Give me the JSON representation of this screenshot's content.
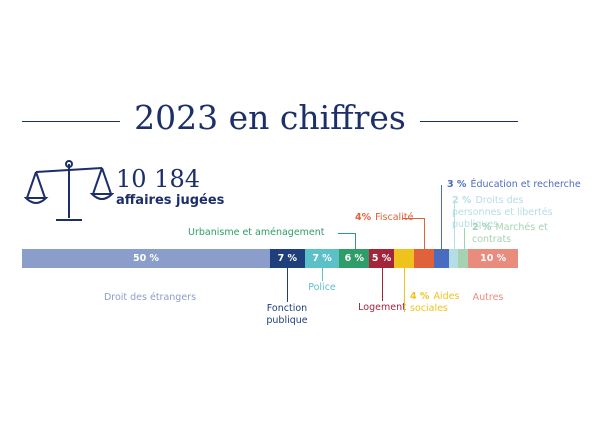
{
  "header": {
    "title": "2023 en chiffres",
    "total": "10 184",
    "total_caption": "affaires jugées"
  },
  "chart_data": {
    "type": "stacked-bar",
    "xlim": [
      0,
      100
    ],
    "series": [
      {
        "name": "Droit des étrangers",
        "color": "#8b9dcb",
        "values": [
          50
        ],
        "value_labels": [
          "50 %"
        ]
      },
      {
        "name": "Fonction publique",
        "color": "#1f3f7c",
        "values": [
          7
        ],
        "value_labels": [
          "7 %"
        ]
      },
      {
        "name": "Police",
        "color": "#5cc0c8",
        "values": [
          7
        ],
        "value_labels": [
          "7 %"
        ]
      },
      {
        "name": "Urbanisme et aménagement",
        "color": "#2f9d69",
        "values": [
          6
        ],
        "value_labels": [
          "6 %"
        ]
      },
      {
        "name": "Logement",
        "color": "#a3243b",
        "values": [
          5
        ],
        "value_labels": [
          "5 %"
        ]
      },
      {
        "name": "Aides sociales",
        "color": "#efc21c",
        "values": [
          4
        ],
        "value_labels": [
          "4 %"
        ]
      },
      {
        "name": "Fiscalité",
        "color": "#e0613a",
        "values": [
          4
        ],
        "value_labels": [
          "4%"
        ]
      },
      {
        "name": "Éducation et recherche",
        "color": "#4a6cc0",
        "values": [
          3
        ],
        "value_labels": [
          "3 %"
        ]
      },
      {
        "name": "Droits des personnes et libertés publiques",
        "color": "#b5dde5",
        "values": [
          2
        ],
        "value_labels": [
          "2 %"
        ]
      },
      {
        "name": "Marchés et contrats",
        "color": "#a6d2b2",
        "values": [
          2
        ],
        "value_labels": [
          "2 %"
        ]
      },
      {
        "name": "Autres",
        "color": "#e98c7d",
        "values": [
          10
        ],
        "value_labels": [
          "10 %"
        ]
      }
    ]
  }
}
